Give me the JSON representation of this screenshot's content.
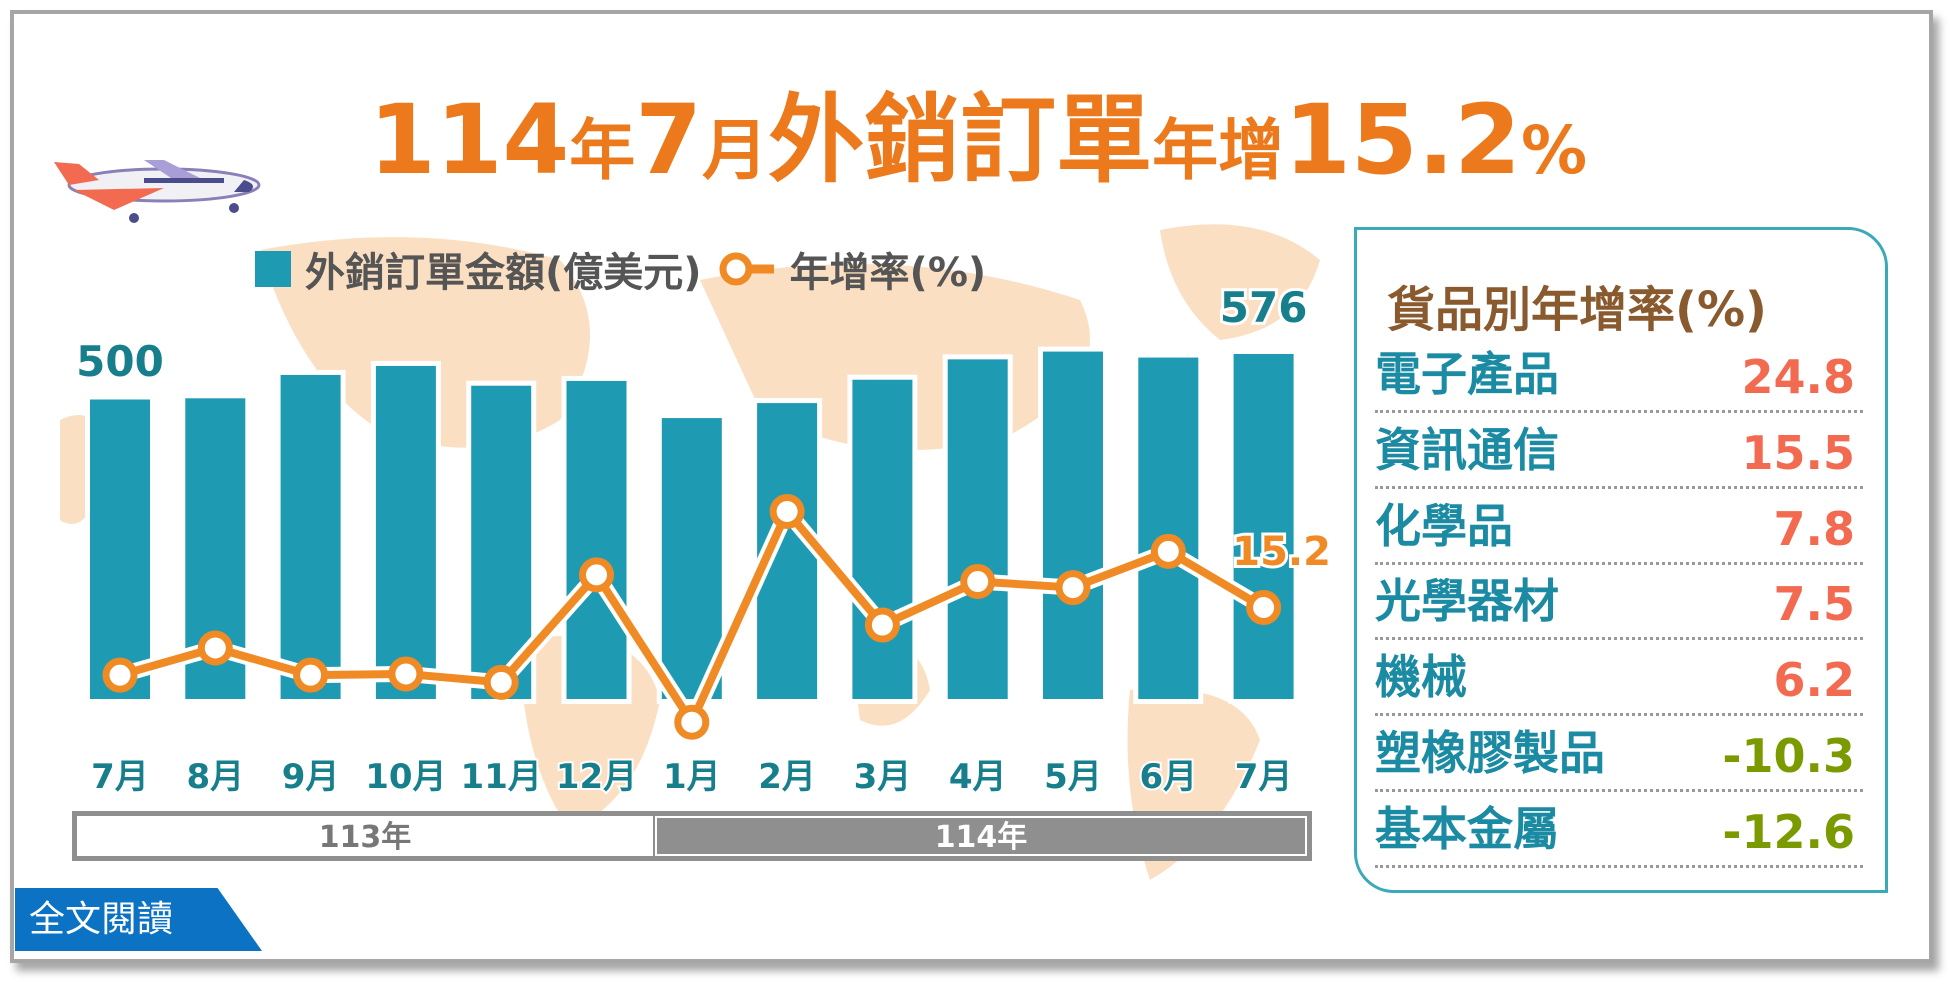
{
  "title": {
    "part1": "114",
    "part2": "年",
    "part3": "7",
    "part4": "月",
    "part5": "外銷訂單",
    "part6": "年增",
    "part7": "15.2",
    "part8": "%"
  },
  "legend": {
    "bars": "外銷訂單金額(億美元)",
    "line": "年增率(%)"
  },
  "colors": {
    "bar": "#1f9ab3",
    "line": "#f08a24",
    "label_teal": "#177f8c",
    "positive": "#f26a4f",
    "negative": "#7a9a00"
  },
  "chart_data": {
    "type": "bar+line",
    "categories": [
      "7月",
      "8月",
      "9月",
      "10月",
      "11月",
      "12月",
      "1月",
      "2月",
      "3月",
      "4月",
      "5月",
      "6月",
      "7月"
    ],
    "year_groups": [
      {
        "label": "113年",
        "months": 6
      },
      {
        "label": "114年",
        "months": 7
      }
    ],
    "series": [
      {
        "name": "外銷訂單金額(億美元)",
        "type": "bar",
        "values": [
          500,
          502,
          541,
          556,
          523,
          531,
          469,
          494,
          533,
          567,
          580,
          570,
          576
        ]
      },
      {
        "name": "年增率(%)",
        "type": "line",
        "values": [
          4.0,
          8.5,
          4.0,
          4.2,
          2.8,
          20.6,
          -3.8,
          31.1,
          12.3,
          19.5,
          18.5,
          24.5,
          15.2
        ]
      }
    ],
    "data_labels": {
      "first_bar": "500",
      "last_bar": "576",
      "last_point": "15.2"
    }
  },
  "panel": {
    "title": "貨品別年增率(%)",
    "rows": [
      {
        "name": "電子產品",
        "value": "24.8"
      },
      {
        "name": "資訊通信",
        "value": "15.5"
      },
      {
        "name": "化學品",
        "value": "7.8"
      },
      {
        "name": "光學器材",
        "value": "7.5"
      },
      {
        "name": "機械",
        "value": "6.2"
      },
      {
        "name": "塑橡膠製品",
        "value": "-10.3"
      },
      {
        "name": "基本金屬",
        "value": "-12.6"
      }
    ]
  },
  "read_more": "全文閱讀"
}
